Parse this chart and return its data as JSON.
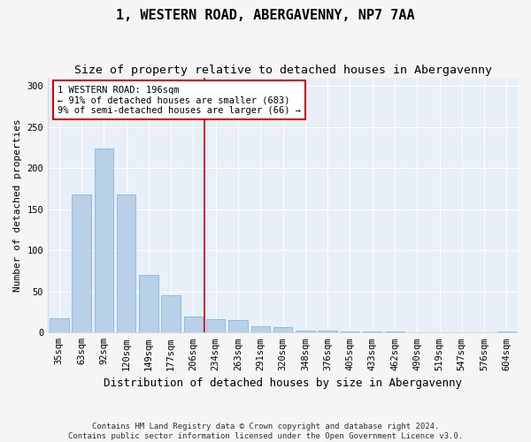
{
  "title": "1, WESTERN ROAD, ABERGAVENNY, NP7 7AA",
  "subtitle": "Size of property relative to detached houses in Abergavenny",
  "xlabel": "Distribution of detached houses by size in Abergavenny",
  "ylabel": "Number of detached properties",
  "categories": [
    "35sqm",
    "63sqm",
    "92sqm",
    "120sqm",
    "149sqm",
    "177sqm",
    "206sqm",
    "234sqm",
    "263sqm",
    "291sqm",
    "320sqm",
    "348sqm",
    "376sqm",
    "405sqm",
    "433sqm",
    "462sqm",
    "490sqm",
    "519sqm",
    "547sqm",
    "576sqm",
    "604sqm"
  ],
  "values": [
    18,
    168,
    224,
    168,
    70,
    45,
    20,
    16,
    15,
    8,
    7,
    3,
    2,
    1,
    1,
    1,
    0,
    0,
    0,
    0,
    1
  ],
  "bar_color": "#b8d0e8",
  "bar_edge_color": "#7aaed4",
  "background_color": "#e8eff8",
  "grid_color": "#ffffff",
  "vline_color": "#cc0000",
  "vline_x": 6.5,
  "annotation_text": "1 WESTERN ROAD: 196sqm\n← 91% of detached houses are smaller (683)\n9% of semi-detached houses are larger (66) →",
  "annotation_box_color": "#ffffff",
  "annotation_box_edge": "#cc0000",
  "ylim": [
    0,
    310
  ],
  "yticks": [
    0,
    50,
    100,
    150,
    200,
    250,
    300
  ],
  "footnote": "Contains HM Land Registry data © Crown copyright and database right 2024.\nContains public sector information licensed under the Open Government Licence v3.0.",
  "title_fontsize": 11,
  "subtitle_fontsize": 9.5,
  "xlabel_fontsize": 9,
  "ylabel_fontsize": 8,
  "tick_fontsize": 7.5,
  "annot_fontsize": 7.5,
  "footnote_fontsize": 6.5
}
